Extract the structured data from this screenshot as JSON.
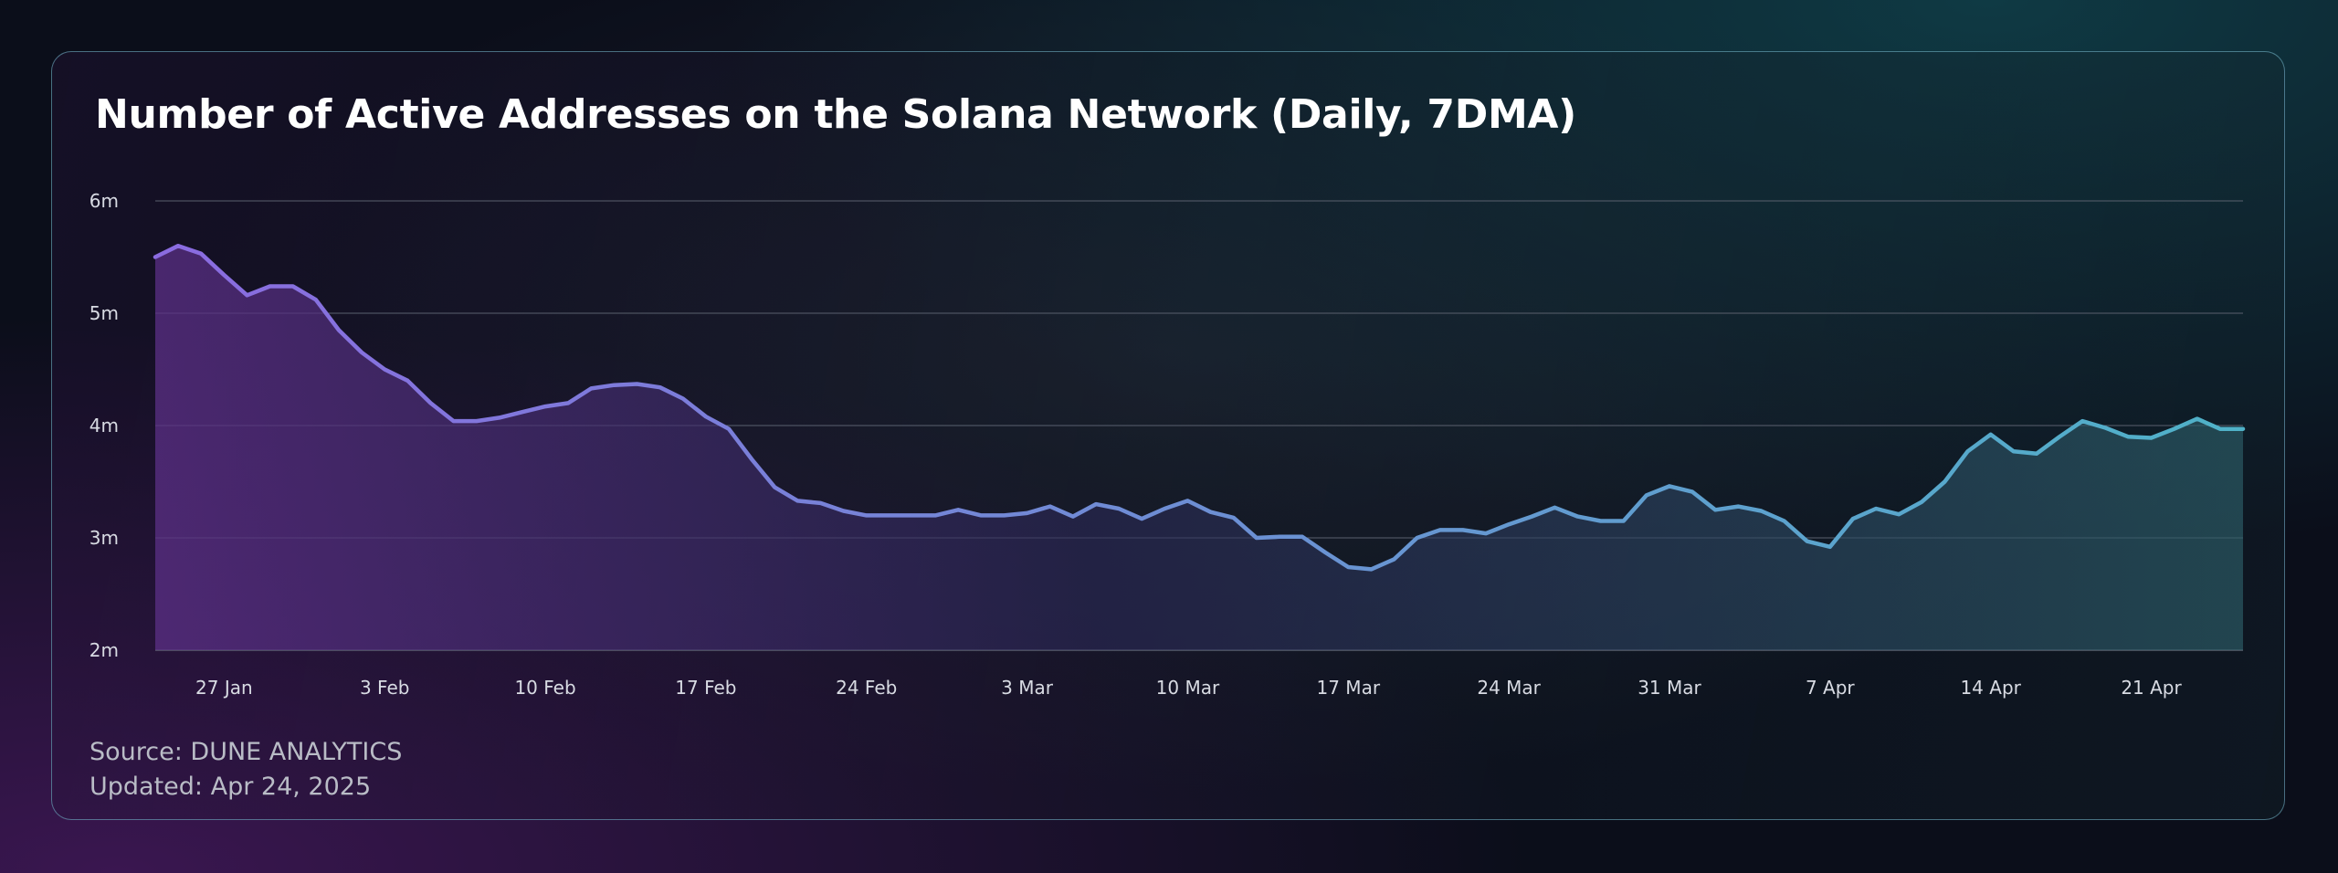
{
  "title": "Number of Active Addresses on the Solana Network (Daily, 7DMA)",
  "footer": {
    "source": "Source: DUNE ANALYTICS",
    "updated": "Updated: Apr 24, 2025"
  },
  "colors": {
    "line_start": "#8b6be0",
    "line_end": "#4fb2c8",
    "grid": "#5a606e"
  },
  "chart_data": {
    "type": "line",
    "title": "Number of Active Addresses on the Solana Network (Daily, 7DMA)",
    "xlabel": "",
    "ylabel": "",
    "ylim": [
      2,
      6
    ],
    "y_unit": "m",
    "y_ticks": [
      "2m",
      "3m",
      "4m",
      "5m",
      "6m"
    ],
    "y_tick_values": [
      2,
      3,
      4,
      5,
      6
    ],
    "x_ticks": [
      "27 Jan",
      "3 Feb",
      "10 Feb",
      "17 Feb",
      "24 Feb",
      "3 Mar",
      "10 Mar",
      "17 Mar",
      "24 Mar",
      "31 Mar",
      "7 Apr",
      "14 Apr",
      "21 Apr"
    ],
    "x_tick_dates": [
      "2025-01-27",
      "2025-02-03",
      "2025-02-10",
      "2025-02-17",
      "2025-02-24",
      "2025-03-03",
      "2025-03-10",
      "2025-03-17",
      "2025-03-24",
      "2025-03-31",
      "2025-04-07",
      "2025-04-14",
      "2025-04-21"
    ],
    "grid": true,
    "legend": "none",
    "series": [
      {
        "x_start": "2025-01-24",
        "x_step": "1 day",
        "values": [
          5.5,
          5.6,
          5.53,
          5.34,
          5.16,
          5.24,
          5.24,
          5.12,
          4.85,
          4.65,
          4.5,
          4.4,
          4.2,
          4.04,
          4.04,
          4.07,
          4.12,
          4.17,
          4.2,
          4.33,
          4.36,
          4.37,
          4.34,
          4.24,
          4.08,
          3.97,
          3.7,
          3.45,
          3.33,
          3.31,
          3.24,
          3.2,
          3.2,
          3.2,
          3.2,
          3.25,
          3.2,
          3.2,
          3.22,
          3.28,
          3.19,
          3.3,
          3.26,
          3.17,
          3.26,
          3.33,
          3.23,
          3.18,
          3.0,
          3.01,
          3.01,
          2.87,
          2.74,
          2.72,
          2.81,
          3.0,
          3.07,
          3.07,
          3.04,
          3.12,
          3.19,
          3.27,
          3.19,
          3.15,
          3.15,
          3.38,
          3.46,
          3.41,
          3.25,
          3.28,
          3.24,
          3.15,
          2.97,
          2.92,
          3.17,
          3.26,
          3.21,
          3.32,
          3.5,
          3.77,
          3.92,
          3.77,
          3.75,
          3.9,
          4.04,
          3.98,
          3.9,
          3.89,
          3.97,
          4.06,
          3.97,
          3.97
        ]
      }
    ]
  }
}
